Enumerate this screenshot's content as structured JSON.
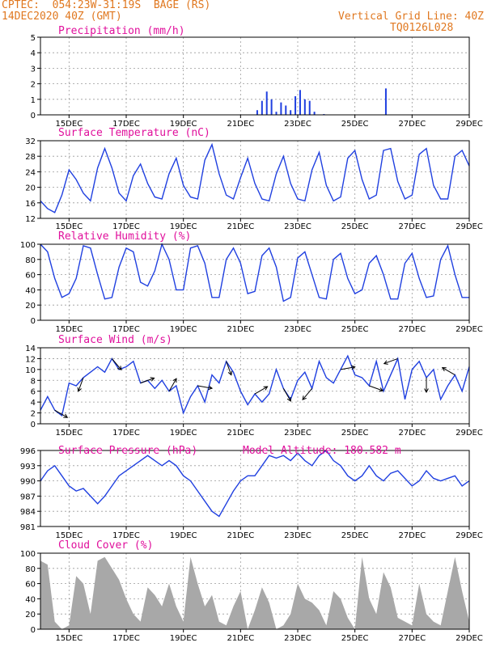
{
  "header": {
    "line1": "CPTEC:  054:23W-31:19S  BAGE (RS)",
    "line2": "14DEC2020 40Z (GMT)",
    "right1": "Vertical Grid Line: 40Z",
    "right2": "TQ0126L028"
  },
  "colors": {
    "header": "#e07820",
    "title": "#e0109c",
    "line": "#2040e0",
    "cloud": "#a8a8a8",
    "grid": "#9a9a9a"
  },
  "chart_data": [
    {
      "id": "precip",
      "type": "bar",
      "title": "Precipitation (mm/h)",
      "xlim": [
        0,
        360
      ],
      "ylim": [
        0,
        5
      ],
      "yticks": [
        "0",
        "1",
        "2",
        "3",
        "4",
        "5"
      ],
      "x": [
        182,
        186,
        190,
        194,
        198,
        202,
        206,
        210,
        214,
        218,
        222,
        226,
        230,
        238,
        290
      ],
      "values": [
        0.3,
        0.9,
        1.5,
        1.0,
        0.2,
        0.8,
        0.6,
        0.3,
        1.2,
        1.6,
        1.0,
        0.9,
        0.2,
        0.05,
        1.7
      ]
    },
    {
      "id": "temp",
      "type": "line",
      "title": "Surface Temperature (nC)",
      "xlim": [
        0,
        360
      ],
      "ylim": [
        12,
        32
      ],
      "yticks": [
        "12",
        "16",
        "20",
        "24",
        "28",
        "32"
      ],
      "x": [
        0,
        6,
        12,
        18,
        24,
        30,
        36,
        42,
        48,
        54,
        60,
        66,
        72,
        78,
        84,
        90,
        96,
        102,
        108,
        114,
        120,
        126,
        132,
        138,
        144,
        150,
        156,
        162,
        168,
        174,
        180,
        186,
        192,
        198,
        204,
        210,
        216,
        222,
        228,
        234,
        240,
        246,
        252,
        258,
        264,
        270,
        276,
        282,
        288,
        294,
        300,
        306,
        312,
        318,
        324,
        330,
        336,
        342,
        348,
        354,
        360
      ],
      "values": [
        16.5,
        14.5,
        13.5,
        18.0,
        24.5,
        22.0,
        18.5,
        16.5,
        25.0,
        30.0,
        25.0,
        18.5,
        16.5,
        23.0,
        26.0,
        21.0,
        17.5,
        17.0,
        23.5,
        27.5,
        20.5,
        17.5,
        17.0,
        27.0,
        31.0,
        23.5,
        18.0,
        17.0,
        22.5,
        27.5,
        21.0,
        17.0,
        16.5,
        23.5,
        28.0,
        21.0,
        17.0,
        16.5,
        24.5,
        29.0,
        20.5,
        16.5,
        17.5,
        27.5,
        29.5,
        22.0,
        17.0,
        18.0,
        29.5,
        30.0,
        21.5,
        17.0,
        18.0,
        28.5,
        30.0,
        20.5,
        17.0,
        17.0,
        28.0,
        29.5,
        25.5
      ]
    },
    {
      "id": "rh",
      "type": "line",
      "title": "Relative Humidity (%)",
      "xlim": [
        0,
        360
      ],
      "ylim": [
        0,
        100
      ],
      "yticks": [
        "0",
        "20",
        "40",
        "60",
        "80",
        "100"
      ],
      "x": [
        0,
        6,
        12,
        18,
        24,
        30,
        36,
        42,
        48,
        54,
        60,
        66,
        72,
        78,
        84,
        90,
        96,
        102,
        108,
        114,
        120,
        126,
        132,
        138,
        144,
        150,
        156,
        162,
        168,
        174,
        180,
        186,
        192,
        198,
        204,
        210,
        216,
        222,
        228,
        234,
        240,
        246,
        252,
        258,
        264,
        270,
        276,
        282,
        288,
        294,
        300,
        306,
        312,
        318,
        324,
        330,
        336,
        342,
        348,
        354,
        360
      ],
      "values": [
        100,
        90,
        55,
        30,
        35,
        55,
        98,
        95,
        60,
        28,
        30,
        70,
        95,
        90,
        50,
        45,
        65,
        100,
        80,
        40,
        40,
        95,
        98,
        75,
        30,
        30,
        80,
        95,
        75,
        35,
        38,
        85,
        95,
        70,
        25,
        30,
        82,
        90,
        60,
        30,
        28,
        80,
        88,
        55,
        35,
        40,
        75,
        85,
        60,
        28,
        28,
        75,
        88,
        55,
        30,
        32,
        80,
        98,
        60,
        30,
        30
      ]
    },
    {
      "id": "wind",
      "type": "line",
      "title": "Surface Wind (m/s)",
      "xlim": [
        0,
        360
      ],
      "ylim": [
        0,
        14
      ],
      "yticks": [
        "0",
        "2",
        "4",
        "6",
        "8",
        "10",
        "12",
        "14"
      ],
      "x": [
        0,
        6,
        12,
        18,
        24,
        30,
        36,
        42,
        48,
        54,
        60,
        66,
        72,
        78,
        84,
        90,
        96,
        102,
        108,
        114,
        120,
        126,
        132,
        138,
        144,
        150,
        156,
        162,
        168,
        174,
        180,
        186,
        192,
        198,
        204,
        210,
        216,
        222,
        228,
        234,
        240,
        246,
        252,
        258,
        264,
        270,
        276,
        282,
        288,
        294,
        300,
        306,
        312,
        318,
        324,
        330,
        336,
        342,
        348,
        354,
        360
      ],
      "values": [
        2.5,
        5.0,
        2.5,
        1.5,
        7.5,
        7.0,
        8.5,
        9.5,
        10.5,
        9.5,
        12.0,
        10.0,
        10.5,
        11.5,
        7.5,
        8.0,
        6.5,
        8.0,
        6.0,
        7.0,
        2.0,
        5.0,
        7.0,
        4.0,
        9.0,
        7.5,
        11.5,
        9.5,
        6.0,
        3.5,
        5.5,
        4.0,
        5.5,
        10.0,
        6.5,
        4.5,
        8.0,
        9.5,
        6.5,
        11.5,
        8.5,
        7.5,
        10.0,
        12.5,
        9.0,
        8.5,
        7.0,
        11.5,
        6.0,
        9.0,
        12.0,
        4.5,
        10.0,
        11.5,
        8.5,
        10.0,
        4.5,
        7.0,
        9.0,
        6.0,
        10.5
      ],
      "barbs_x": [
        12,
        36,
        60,
        84,
        108,
        132,
        156,
        180,
        204,
        228,
        252,
        276,
        300,
        324,
        348
      ],
      "barbs_dir_deg": [
        120,
        200,
        140,
        70,
        30,
        100,
        160,
        60,
        150,
        220,
        80,
        110,
        250,
        180,
        300
      ]
    },
    {
      "id": "pres",
      "type": "line",
      "title": "Surface Pressure (hPa)",
      "annotation": "Model Altitude: 180.582 m",
      "xlim": [
        0,
        360
      ],
      "ylim": [
        981,
        996
      ],
      "yticks": [
        "981",
        "984",
        "987",
        "990",
        "993",
        "996"
      ],
      "x": [
        0,
        6,
        12,
        18,
        24,
        30,
        36,
        42,
        48,
        54,
        60,
        66,
        72,
        78,
        84,
        90,
        96,
        102,
        108,
        114,
        120,
        126,
        132,
        138,
        144,
        150,
        156,
        162,
        168,
        174,
        180,
        186,
        192,
        198,
        204,
        210,
        216,
        222,
        228,
        234,
        240,
        246,
        252,
        258,
        264,
        270,
        276,
        282,
        288,
        294,
        300,
        306,
        312,
        318,
        324,
        330,
        336,
        342,
        348,
        354,
        360
      ],
      "values": [
        990,
        992,
        993,
        991,
        989,
        988,
        988.5,
        987,
        985.5,
        987,
        989,
        991,
        992,
        993,
        994,
        995,
        994,
        993,
        994,
        993,
        991,
        990,
        988,
        986,
        984,
        983,
        985.5,
        988,
        990,
        991,
        991,
        993,
        995,
        994.5,
        995,
        994,
        995.5,
        994,
        993,
        995,
        996,
        994,
        993,
        991,
        990,
        991,
        993,
        991,
        990,
        991.5,
        992,
        990.5,
        989,
        990,
        992,
        990.5,
        990,
        990.5,
        991,
        989,
        990
      ]
    },
    {
      "id": "cloud",
      "type": "area",
      "title": "Cloud Cover (%)",
      "xlim": [
        0,
        360
      ],
      "ylim": [
        0,
        100
      ],
      "yticks": [
        "0",
        "20",
        "40",
        "60",
        "80",
        "100"
      ],
      "x": [
        0,
        6,
        12,
        18,
        24,
        30,
        36,
        42,
        48,
        54,
        60,
        66,
        72,
        78,
        84,
        90,
        96,
        102,
        108,
        114,
        120,
        126,
        132,
        138,
        144,
        150,
        156,
        162,
        168,
        174,
        180,
        186,
        192,
        198,
        204,
        210,
        216,
        222,
        228,
        234,
        240,
        246,
        252,
        258,
        264,
        270,
        276,
        282,
        288,
        294,
        300,
        306,
        312,
        318,
        324,
        330,
        336,
        342,
        348,
        354,
        360
      ],
      "values": [
        90,
        85,
        10,
        0,
        5,
        70,
        60,
        20,
        90,
        95,
        80,
        65,
        40,
        20,
        10,
        55,
        45,
        30,
        60,
        30,
        10,
        95,
        60,
        30,
        45,
        10,
        5,
        30,
        50,
        0,
        25,
        55,
        35,
        0,
        5,
        20,
        60,
        40,
        35,
        25,
        5,
        50,
        40,
        15,
        0,
        95,
        40,
        20,
        75,
        55,
        15,
        10,
        5,
        60,
        20,
        10,
        5,
        50,
        95,
        50,
        10
      ]
    }
  ],
  "xaxis": {
    "ticks_x": [
      24,
      72,
      120,
      168,
      216,
      264,
      312,
      360
    ],
    "labels": [
      "15DEC",
      "17DEC",
      "19DEC",
      "21DEC",
      "23DEC",
      "25DEC",
      "27DEC",
      "29DEC"
    ]
  }
}
